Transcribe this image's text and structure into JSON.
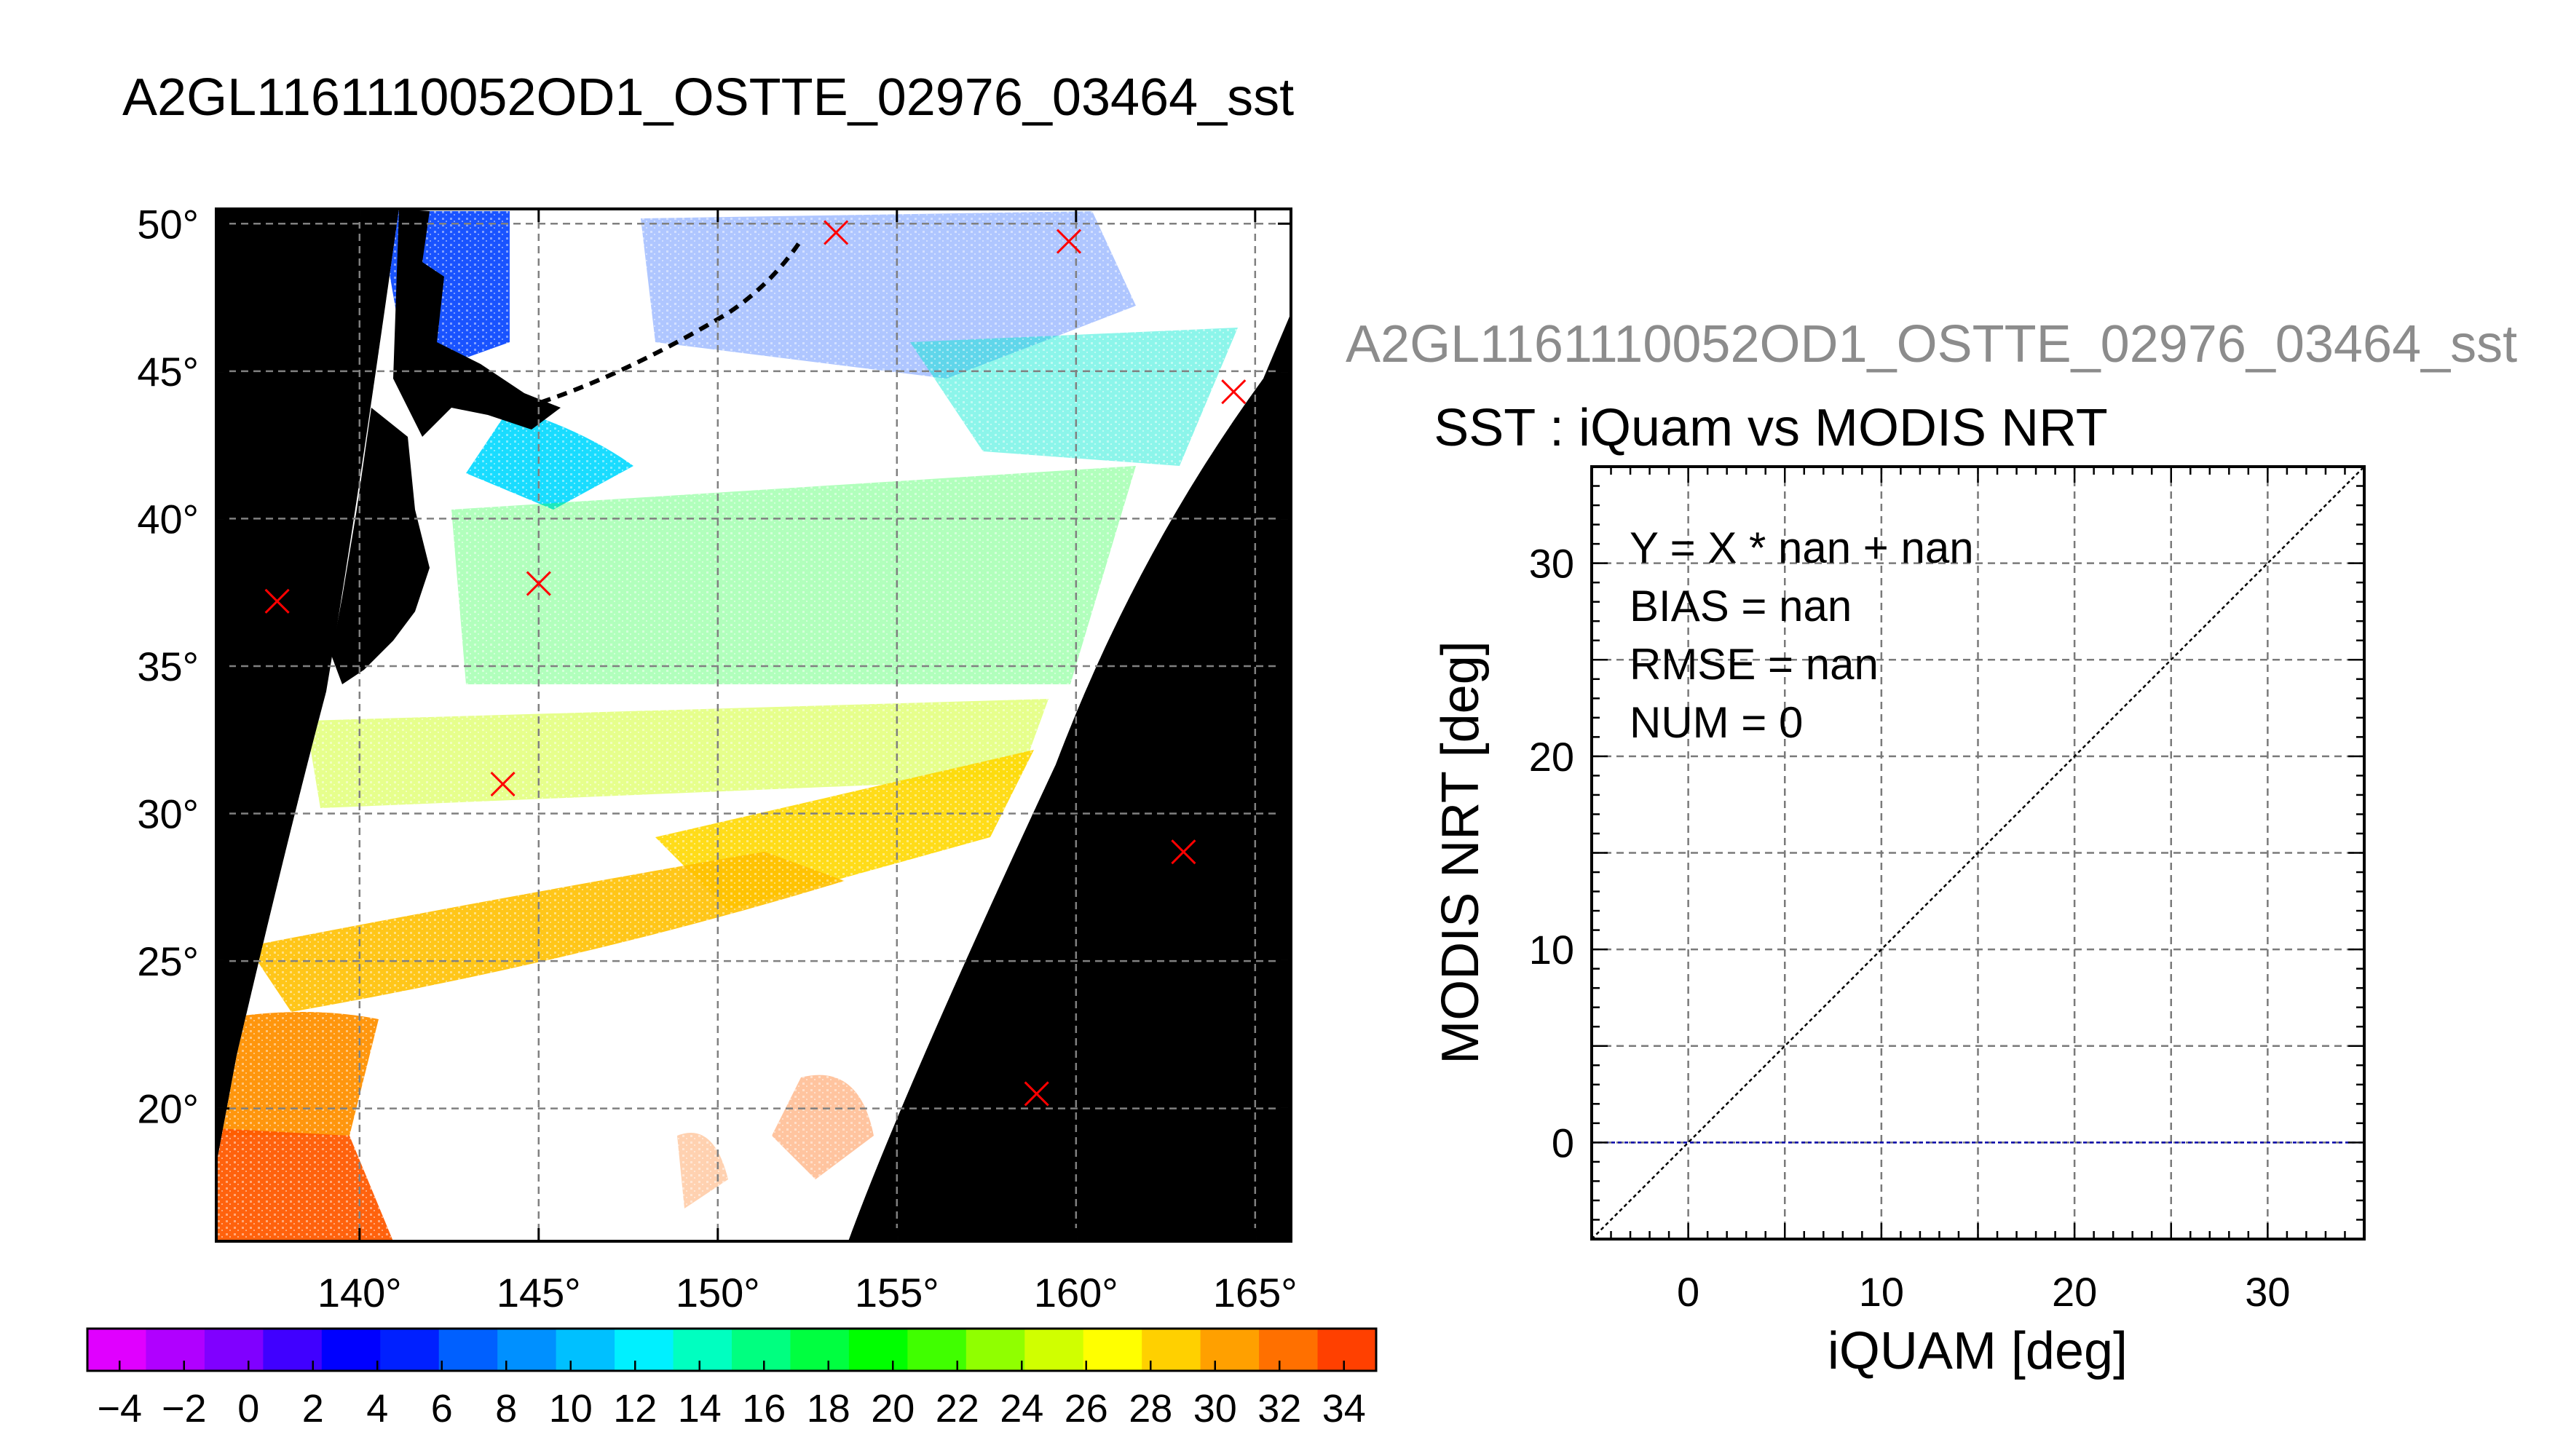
{
  "map_panel": {
    "title": "A2GL1161110052OD1_OSTTE_02976_03464_sst",
    "lon_ticks": [
      140,
      145,
      150,
      155,
      160,
      165
    ],
    "lat_ticks": [
      20,
      25,
      30,
      35,
      40,
      45,
      50
    ],
    "lon_range": [
      136,
      166
    ],
    "lat_range": [
      15.5,
      50.5
    ],
    "degree_symbol": "°",
    "colorbar": {
      "min": -5,
      "max": 35,
      "tick_labels": [
        "−4",
        "−2",
        "0",
        "2",
        "4",
        "6",
        "8",
        "10",
        "12",
        "14",
        "16",
        "18",
        "20",
        "22",
        "24",
        "26",
        "28",
        "30",
        "32",
        "34"
      ],
      "tick_values": [
        -4,
        -2,
        0,
        2,
        4,
        6,
        8,
        10,
        12,
        14,
        16,
        18,
        20,
        22,
        24,
        26,
        28,
        30,
        32,
        34
      ],
      "colors": [
        "#e000ff",
        "#b000ff",
        "#8000ff",
        "#4000ff",
        "#0000ff",
        "#0020ff",
        "#0060ff",
        "#0090ff",
        "#00c0ff",
        "#00f0ff",
        "#00ffc0",
        "#00ff80",
        "#00ff40",
        "#00ff00",
        "#40ff00",
        "#90ff00",
        "#d0ff00",
        "#ffff00",
        "#ffd000",
        "#ffa000",
        "#ff7000",
        "#ff4000"
      ]
    },
    "station_markers": [
      {
        "lon": 153.3,
        "lat": 49.7
      },
      {
        "lon": 159.8,
        "lat": 49.4
      },
      {
        "lon": 164.4,
        "lat": 44.3
      },
      {
        "lon": 137.7,
        "lat": 37.2
      },
      {
        "lon": 145.0,
        "lat": 37.8
      },
      {
        "lon": 144.0,
        "lat": 31.0
      },
      {
        "lon": 163.0,
        "lat": 28.7
      },
      {
        "lon": 158.9,
        "lat": 20.5
      }
    ],
    "colors": {
      "background_mask": "#000000",
      "land": "#000000",
      "marker": "#ff0000",
      "grid": "#808080"
    }
  },
  "chart_data": {
    "type": "scatter",
    "header": "A2GL1161110052OD1_OSTTE_02976_03464_sst",
    "title": "SST : iQuam vs MODIS NRT",
    "xlabel": "iQUAM [deg]",
    "ylabel": "MODIS NRT [deg]",
    "xlim": [
      -5,
      35
    ],
    "ylim": [
      -5,
      35
    ],
    "x_ticks": [
      0,
      10,
      20,
      30
    ],
    "y_ticks": [
      0,
      10,
      20,
      30
    ],
    "grid": true,
    "points": [],
    "reference_lines": [
      {
        "kind": "identity",
        "x": [
          -5,
          35
        ],
        "y": [
          -5,
          35
        ],
        "color": "#000000"
      },
      {
        "kind": "zero",
        "x": [
          -5,
          35
        ],
        "y": [
          0,
          0
        ],
        "color": "#0000aa"
      }
    ],
    "annotations": [
      "Y = X * nan + nan",
      "BIAS = nan",
      "RMSE = nan",
      "NUM = 0"
    ]
  }
}
